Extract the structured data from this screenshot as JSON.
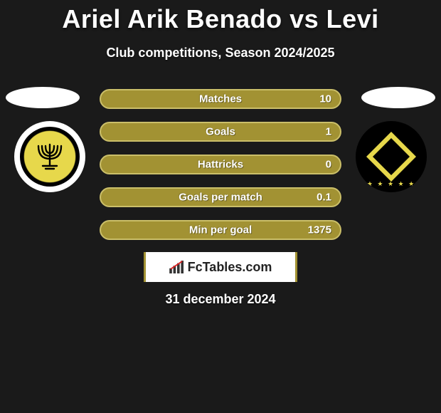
{
  "title": "Ariel Arik Benado vs Levi",
  "subtitle": "Club competitions, Season 2024/2025",
  "date": "31 december 2024",
  "colors": {
    "row_fill": "#a29233",
    "row_border": "#cbbf69",
    "background": "#1a1a1a",
    "text": "#ffffff",
    "crest_a_primary": "#e7d84b",
    "crest_a_secondary": "#000000",
    "crest_a_outer": "#ffffff",
    "crest_b_primary": "#000000",
    "crest_b_accent": "#e7d84b"
  },
  "stats": [
    {
      "label": "Matches",
      "value": "10"
    },
    {
      "label": "Goals",
      "value": "1"
    },
    {
      "label": "Hattricks",
      "value": "0"
    },
    {
      "label": "Goals per match",
      "value": "0.1"
    },
    {
      "label": "Min per goal",
      "value": "1375"
    }
  ],
  "site": {
    "name": "FcTables.com"
  }
}
